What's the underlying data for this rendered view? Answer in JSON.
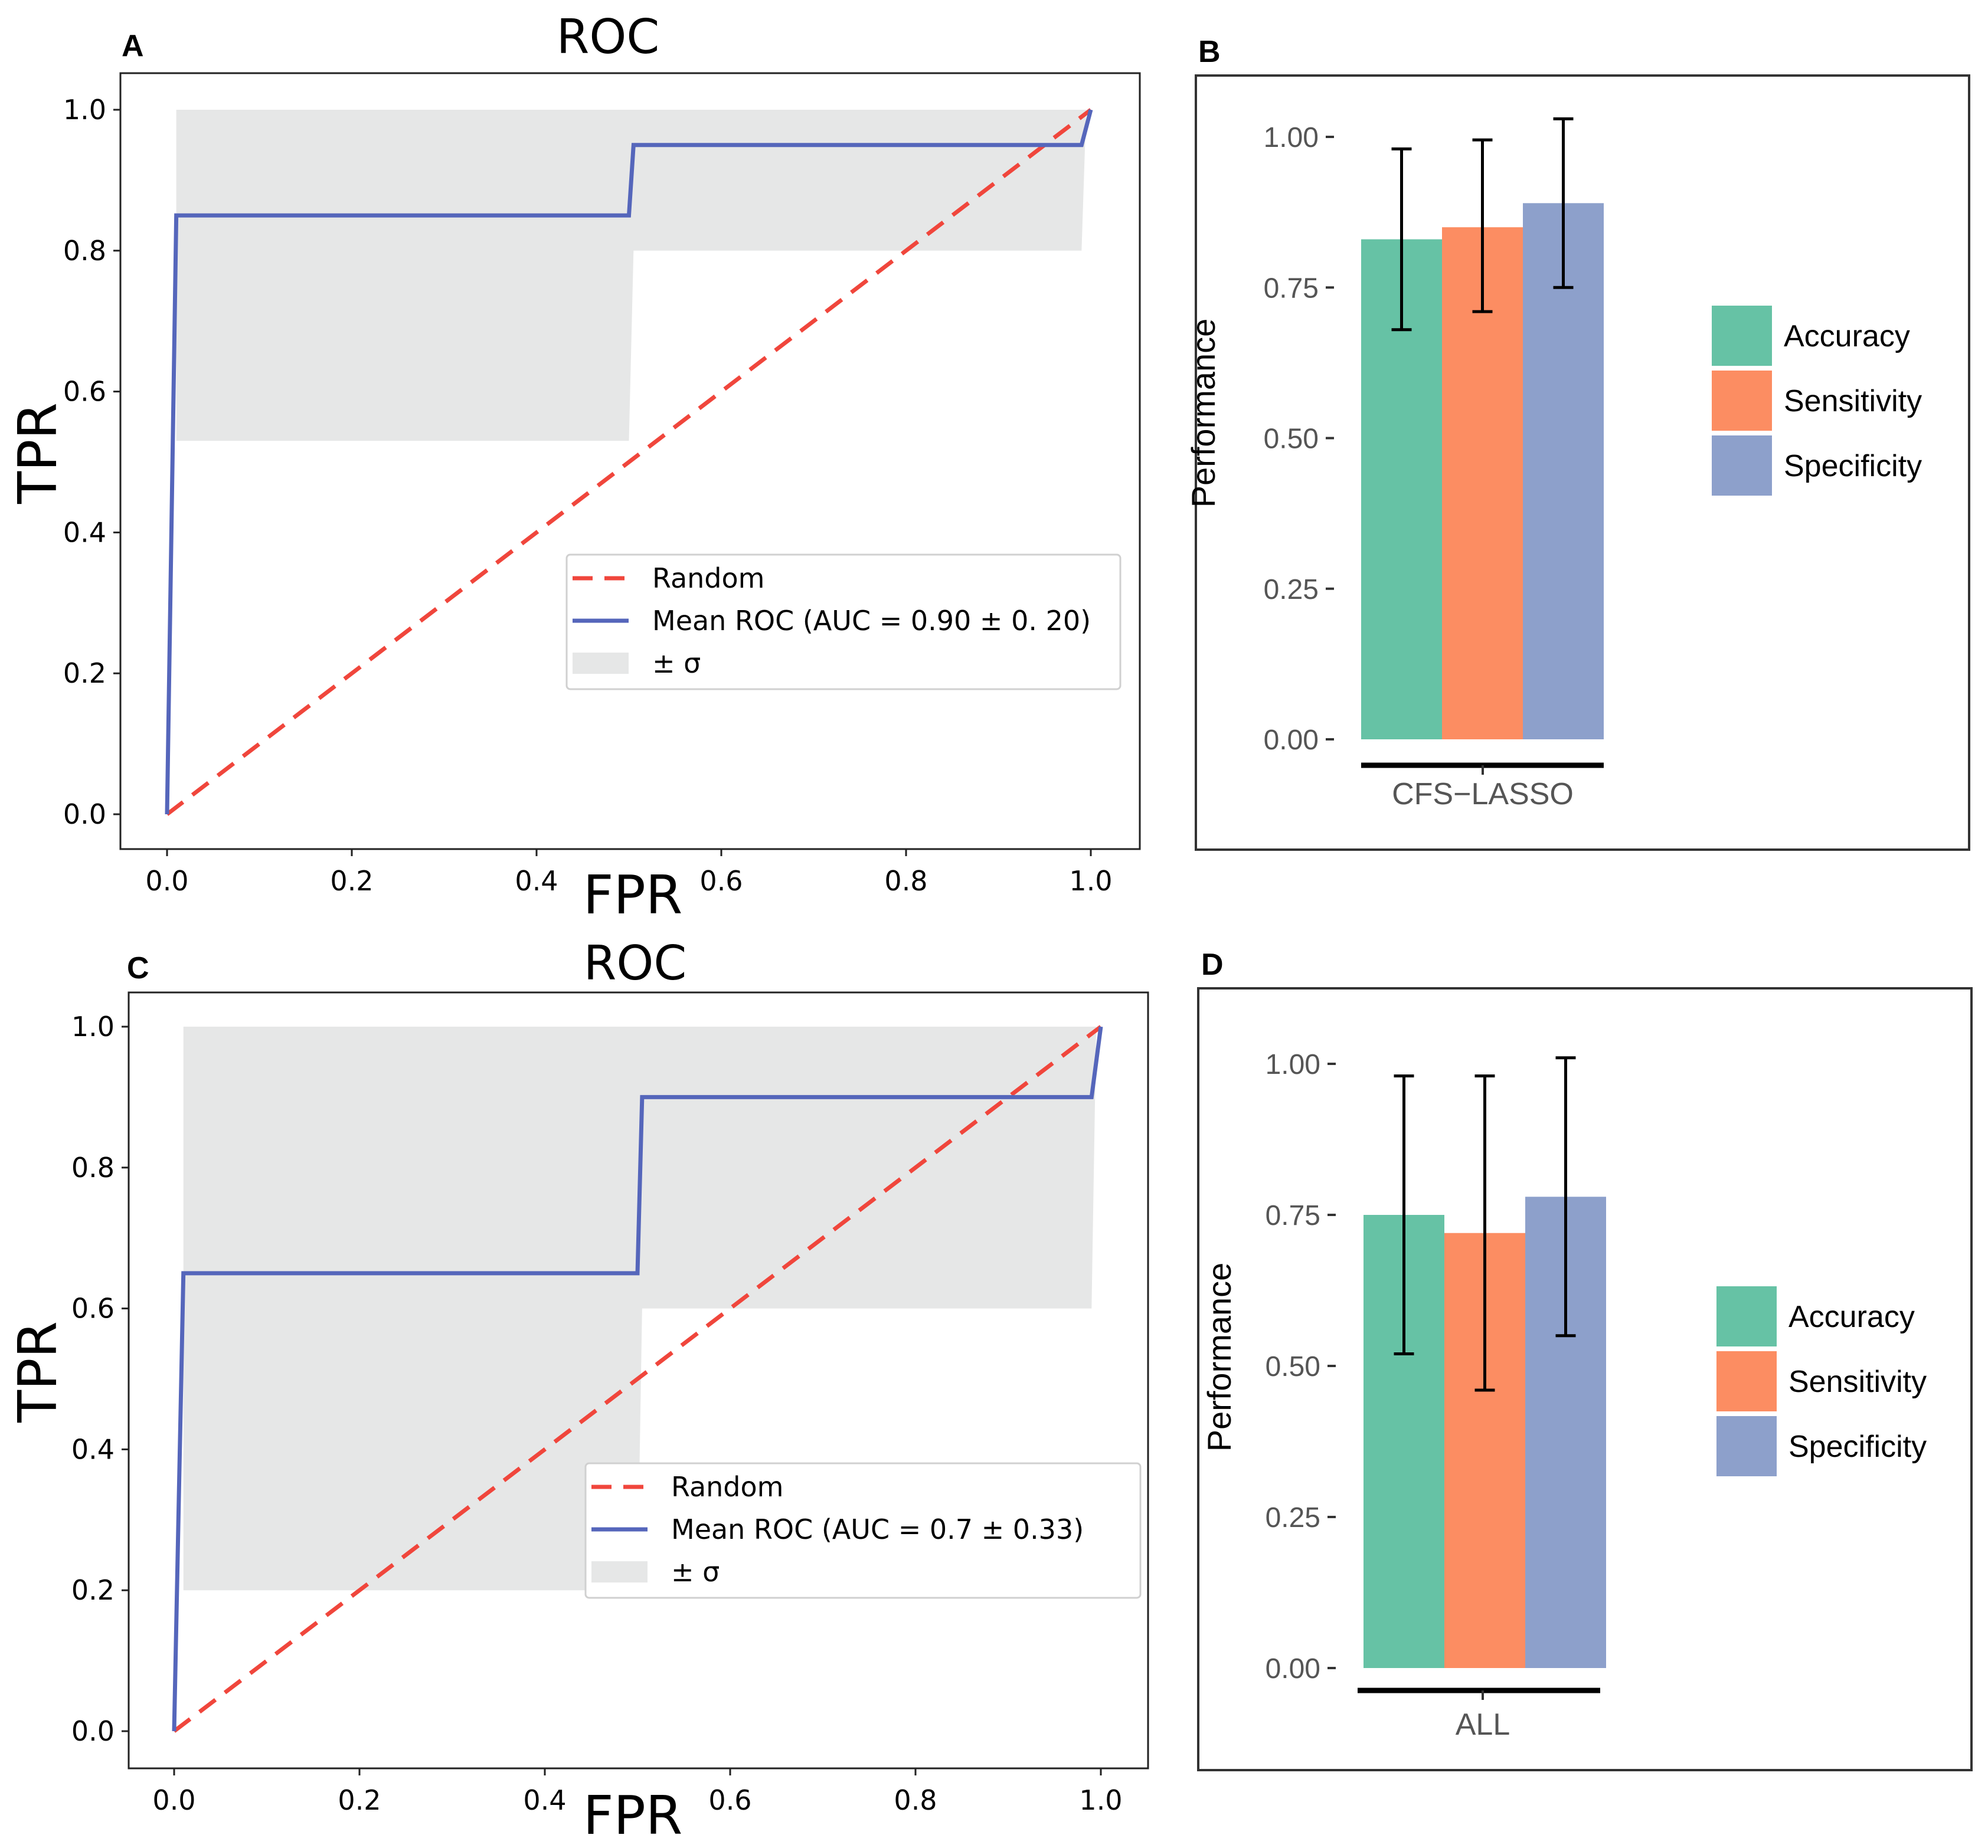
{
  "chart_data": [
    {
      "panel": "A",
      "type": "line",
      "title": "ROC",
      "xlabel": "FPR",
      "ylabel": "TPR",
      "xlim": [
        0,
        1
      ],
      "ylim": [
        0,
        1
      ],
      "xticks": [
        "0.0",
        "0.2",
        "0.4",
        "0.6",
        "0.8",
        "1.0"
      ],
      "yticks": [
        "0.0",
        "0.2",
        "0.4",
        "0.6",
        "0.8",
        "1.0"
      ],
      "series": [
        {
          "name": "Random",
          "color": "#f0463c",
          "style": "dashed",
          "x": [
            0,
            1
          ],
          "y": [
            0,
            1
          ]
        },
        {
          "name": "Mean ROC (AUC = 0.90 ± 0. 20)",
          "color": "#5566bb",
          "style": "solid",
          "x": [
            0,
            0.01,
            0.5,
            0.505,
            0.99,
            1.0
          ],
          "y": [
            0,
            0.85,
            0.85,
            0.95,
            0.95,
            1.0
          ]
        }
      ],
      "band": {
        "name": "± σ",
        "color": "#e6e7e7",
        "upper": {
          "x": [
            0.01,
            0.99,
            0.995
          ],
          "y": [
            1.0,
            1.0,
            1.0
          ]
        },
        "lower": {
          "x": [
            0.01,
            0.5,
            0.505,
            0.99,
            0.995
          ],
          "y": [
            0.53,
            0.53,
            0.8,
            0.8,
            1.0
          ]
        }
      },
      "legend": [
        "Random",
        "Mean ROC (AUC = 0.90 ± 0. 20)",
        "± σ"
      ],
      "legend_position": "lower-right"
    },
    {
      "panel": "B",
      "type": "bar",
      "categories": [
        "CFS−LASSO"
      ],
      "ylabel": "Performance",
      "ylim": [
        0,
        1.1
      ],
      "yticks": [
        "0.00",
        "0.25",
        "0.50",
        "0.75",
        "1.00"
      ],
      "series": [
        {
          "name": "Accuracy",
          "color": "#66c2a5",
          "values": [
            0.83
          ],
          "error_low": [
            0.68
          ],
          "error_high": [
            0.98
          ]
        },
        {
          "name": "Sensitivity",
          "color": "#fc8d62",
          "values": [
            0.85
          ],
          "error_low": [
            0.71
          ],
          "error_high": [
            0.995
          ]
        },
        {
          "name": "Specificity",
          "color": "#8da0cb",
          "values": [
            0.89
          ],
          "error_low": [
            0.75
          ],
          "error_high": [
            1.03
          ]
        }
      ],
      "legend": [
        "Accuracy",
        "Sensitivity",
        "Specificity"
      ],
      "legend_position": "right"
    },
    {
      "panel": "C",
      "type": "line",
      "title": "ROC",
      "xlabel": "FPR",
      "ylabel": "TPR",
      "xlim": [
        0,
        1
      ],
      "ylim": [
        0,
        1
      ],
      "xticks": [
        "0.0",
        "0.2",
        "0.4",
        "0.6",
        "0.8",
        "1.0"
      ],
      "yticks": [
        "0.0",
        "0.2",
        "0.4",
        "0.6",
        "0.8",
        "1.0"
      ],
      "series": [
        {
          "name": "Random",
          "color": "#f0463c",
          "style": "dashed",
          "x": [
            0,
            1
          ],
          "y": [
            0,
            1
          ]
        },
        {
          "name": "Mean ROC (AUC = 0.7 ± 0.33)",
          "color": "#5566bb",
          "style": "solid",
          "x": [
            0,
            0.01,
            0.5,
            0.505,
            0.99,
            1.0
          ],
          "y": [
            0,
            0.65,
            0.65,
            0.9,
            0.9,
            1.0
          ]
        }
      ],
      "band": {
        "name": "± σ",
        "color": "#e6e7e7",
        "upper": {
          "x": [
            0.01,
            0.99,
            0.995
          ],
          "y": [
            1.0,
            1.0,
            1.0
          ]
        },
        "lower": {
          "x": [
            0.01,
            0.5,
            0.505,
            0.99,
            0.995
          ],
          "y": [
            0.2,
            0.2,
            0.6,
            0.6,
            1.0
          ]
        }
      },
      "legend": [
        "Random",
        "Mean ROC (AUC = 0.7 ± 0.33)",
        "± σ"
      ],
      "legend_position": "lower-right"
    },
    {
      "panel": "D",
      "type": "bar",
      "categories": [
        "ALL"
      ],
      "ylabel": "Performance",
      "ylim": [
        0,
        1.1
      ],
      "yticks": [
        "0.00",
        "0.25",
        "0.50",
        "0.75",
        "1.00"
      ],
      "series": [
        {
          "name": "Accuracy",
          "color": "#66c2a5",
          "values": [
            0.75
          ],
          "error_low": [
            0.52
          ],
          "error_high": [
            0.98
          ]
        },
        {
          "name": "Sensitivity",
          "color": "#fc8d62",
          "values": [
            0.72
          ],
          "error_low": [
            0.46
          ],
          "error_high": [
            0.98
          ]
        },
        {
          "name": "Specificity",
          "color": "#8da0cb",
          "values": [
            0.78
          ],
          "error_low": [
            0.55
          ],
          "error_high": [
            1.01
          ]
        }
      ],
      "legend": [
        "Accuracy",
        "Sensitivity",
        "Specificity"
      ],
      "legend_position": "right"
    }
  ]
}
